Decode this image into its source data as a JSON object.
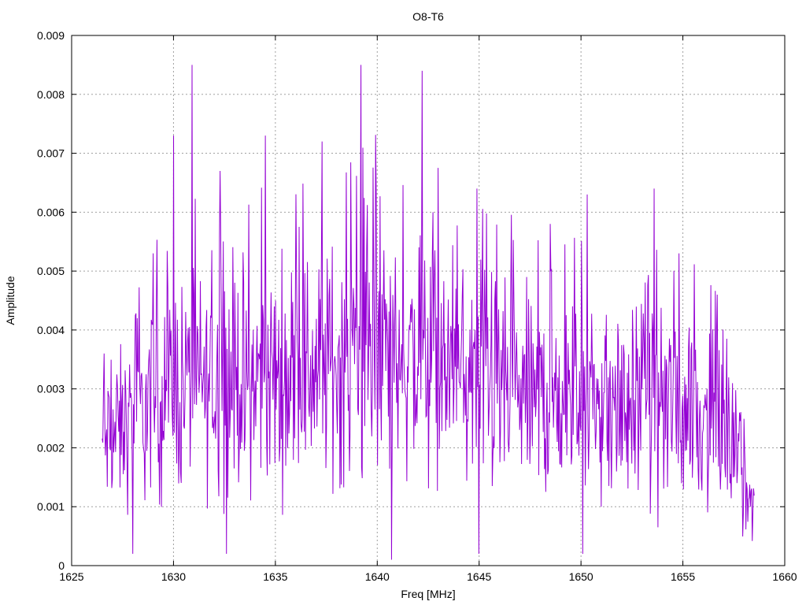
{
  "chart_data": {
    "type": "line",
    "title": "O8-T6",
    "xlabel": "Freq [MHz]",
    "ylabel": "Amplitude",
    "xlim": [
      1625,
      1660
    ],
    "ylim": [
      0,
      0.009
    ],
    "xticks": [
      "1625",
      "1630",
      "1635",
      "1640",
      "1645",
      "1650",
      "1655",
      "1660"
    ],
    "yticks": [
      "0",
      "0.001",
      "0.002",
      "0.003",
      "0.004",
      "0.005",
      "0.006",
      "0.007",
      "0.008",
      "0.009"
    ],
    "grid": true,
    "series": [
      {
        "color": "#9400d3",
        "x_range": [
          1626.5,
          1658.5
        ],
        "points": 1024,
        "envelope": {
          "x": [
            1626.5,
            1628,
            1630,
            1632,
            1634,
            1636,
            1638,
            1640,
            1642,
            1644,
            1646,
            1648,
            1650,
            1652,
            1654,
            1656,
            1657.5,
            1658.5
          ],
          "mean": [
            0.002,
            0.0024,
            0.003,
            0.003,
            0.0031,
            0.0032,
            0.0034,
            0.0035,
            0.0034,
            0.0031,
            0.0029,
            0.0028,
            0.0027,
            0.0026,
            0.0027,
            0.0025,
            0.0019,
            0.0009
          ]
        },
        "peaks": [
          {
            "x": 1626.6,
            "y": 0.0036
          },
          {
            "x": 1628.0,
            "y": 0.0041
          },
          {
            "x": 1629.0,
            "y": 0.0053
          },
          {
            "x": 1630.0,
            "y": 0.0073
          },
          {
            "x": 1630.9,
            "y": 0.0085
          },
          {
            "x": 1632.3,
            "y": 0.0067
          },
          {
            "x": 1634.5,
            "y": 0.0073
          },
          {
            "x": 1637.3,
            "y": 0.0072
          },
          {
            "x": 1639.2,
            "y": 0.0085
          },
          {
            "x": 1642.2,
            "y": 0.0084
          },
          {
            "x": 1644.9,
            "y": 0.0064
          },
          {
            "x": 1648.5,
            "y": 0.0058
          },
          {
            "x": 1650.3,
            "y": 0.0063
          },
          {
            "x": 1653.6,
            "y": 0.0064
          },
          {
            "x": 1654.8,
            "y": 0.0053
          },
          {
            "x": 1656.7,
            "y": 0.0046
          },
          {
            "x": 1658.3,
            "y": 0.001
          }
        ],
        "minima": [
          {
            "x": 1628.0,
            "y": 0.0002
          },
          {
            "x": 1632.6,
            "y": 0.0002
          },
          {
            "x": 1640.7,
            "y": 0.0001
          },
          {
            "x": 1645.0,
            "y": 0.0002
          },
          {
            "x": 1650.1,
            "y": 0.0002
          }
        ]
      }
    ]
  }
}
